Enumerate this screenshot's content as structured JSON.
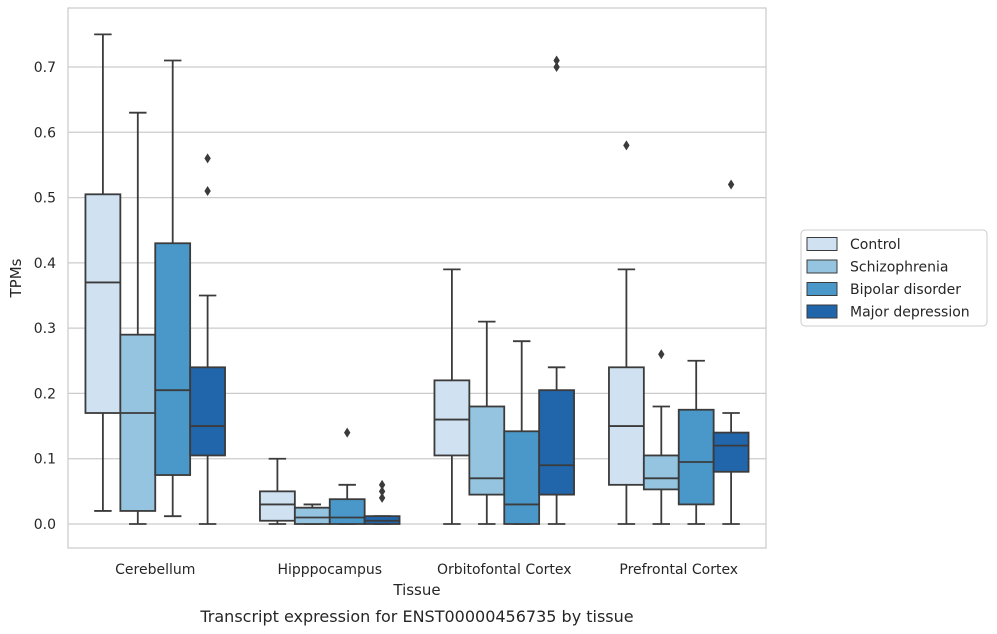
{
  "chart_data": {
    "type": "box",
    "caption": "Transcript expression for ENST00000456735 by tissue",
    "xlabel": "Tissue",
    "ylabel": "TPMs",
    "ylim": [
      -0.035,
      0.79
    ],
    "yticks": [
      0.0,
      0.1,
      0.2,
      0.3,
      0.4,
      0.5,
      0.6,
      0.7
    ],
    "ytick_labels": [
      "0.0",
      "0.1",
      "0.2",
      "0.3",
      "0.4",
      "0.5",
      "0.6",
      "0.7"
    ],
    "grid": "horizontal",
    "legend_position": "right",
    "categories": [
      "Cerebellum",
      "Hipppocampus",
      "Orbitofontal Cortex",
      "Prefrontal Cortex"
    ],
    "series": [
      {
        "name": "Control",
        "color": "#d0e1f2",
        "boxes": [
          {
            "whislo": 0.02,
            "q1": 0.17,
            "med": 0.37,
            "q3": 0.505,
            "whishi": 0.75,
            "fliers": []
          },
          {
            "whislo": 0.0,
            "q1": 0.005,
            "med": 0.03,
            "q3": 0.05,
            "whishi": 0.1,
            "fliers": []
          },
          {
            "whislo": 0.0,
            "q1": 0.105,
            "med": 0.16,
            "q3": 0.22,
            "whishi": 0.39,
            "fliers": []
          },
          {
            "whislo": 0.0,
            "q1": 0.06,
            "med": 0.15,
            "q3": 0.24,
            "whishi": 0.39,
            "fliers": [
              0.58
            ]
          }
        ]
      },
      {
        "name": "Schizophrenia",
        "color": "#94c4df",
        "boxes": [
          {
            "whislo": 0.0,
            "q1": 0.02,
            "med": 0.17,
            "q3": 0.29,
            "whishi": 0.63,
            "fliers": []
          },
          {
            "whislo": 0.0,
            "q1": 0.0,
            "med": 0.01,
            "q3": 0.025,
            "whishi": 0.03,
            "fliers": []
          },
          {
            "whislo": 0.0,
            "q1": 0.045,
            "med": 0.07,
            "q3": 0.18,
            "whishi": 0.31,
            "fliers": []
          },
          {
            "whislo": 0.0,
            "q1": 0.053,
            "med": 0.07,
            "q3": 0.105,
            "whishi": 0.18,
            "fliers": [
              0.26
            ]
          }
        ]
      },
      {
        "name": "Bipolar disorder",
        "color": "#4a98c9",
        "boxes": [
          {
            "whislo": 0.012,
            "q1": 0.075,
            "med": 0.205,
            "q3": 0.43,
            "whishi": 0.71,
            "fliers": []
          },
          {
            "whislo": 0.0,
            "q1": 0.0,
            "med": 0.01,
            "q3": 0.038,
            "whishi": 0.06,
            "fliers": [
              0.14
            ]
          },
          {
            "whislo": 0.0,
            "q1": 0.0,
            "med": 0.03,
            "q3": 0.142,
            "whishi": 0.28,
            "fliers": []
          },
          {
            "whislo": 0.0,
            "q1": 0.03,
            "med": 0.095,
            "q3": 0.175,
            "whishi": 0.25,
            "fliers": []
          }
        ]
      },
      {
        "name": "Major depression",
        "color": "#2165ab",
        "boxes": [
          {
            "whislo": 0.0,
            "q1": 0.105,
            "med": 0.15,
            "q3": 0.24,
            "whishi": 0.35,
            "fliers": [
              0.51,
              0.56
            ]
          },
          {
            "whislo": 0.0,
            "q1": 0.0,
            "med": 0.005,
            "q3": 0.012,
            "whishi": 0.012,
            "fliers": [
              0.04,
              0.05,
              0.06
            ]
          },
          {
            "whislo": 0.0,
            "q1": 0.045,
            "med": 0.09,
            "q3": 0.205,
            "whishi": 0.24,
            "fliers": [
              0.7,
              0.71
            ]
          },
          {
            "whislo": 0.0,
            "q1": 0.08,
            "med": 0.12,
            "q3": 0.14,
            "whishi": 0.17,
            "fliers": [
              0.52
            ]
          }
        ]
      }
    ]
  }
}
